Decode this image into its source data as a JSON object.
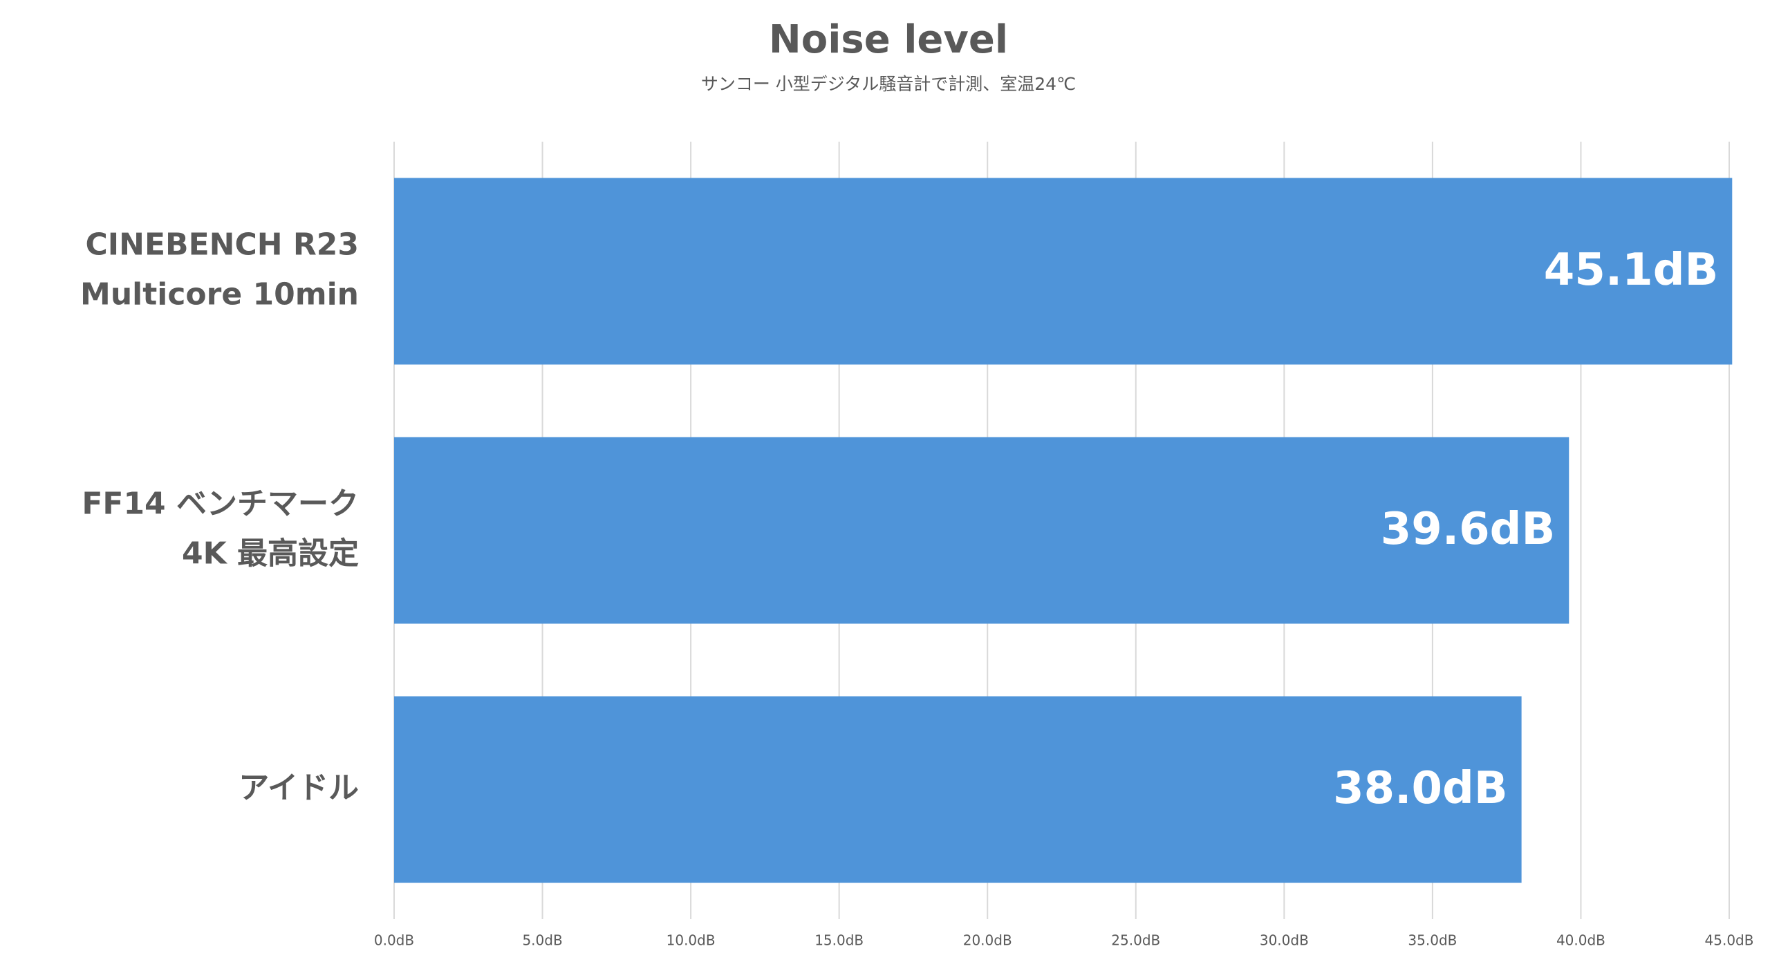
{
  "chart_data": {
    "type": "bar",
    "orientation": "horizontal",
    "title": "Noise level",
    "subtitle": "サンコー 小型デジタル騒音計で計測、室温24℃",
    "categories": [
      [
        "CINEBENCH R23",
        "Multicore 10min"
      ],
      [
        "FF14 ベンチマーク",
        "4K 最高設定"
      ],
      [
        "アイドル"
      ]
    ],
    "values": [
      45.1,
      39.6,
      38.0
    ],
    "value_labels": [
      "45.1dB",
      "39.6dB",
      "38.0dB"
    ],
    "color": "#4f94d9",
    "xlim": [
      0,
      45
    ],
    "xticks": [
      {
        "value": 0,
        "label": "0.0dB"
      },
      {
        "value": 5,
        "label": "5.0dB"
      },
      {
        "value": 10,
        "label": "10.0dB"
      },
      {
        "value": 15,
        "label": "15.0dB"
      },
      {
        "value": 20,
        "label": "20.0dB"
      },
      {
        "value": 25,
        "label": "25.0dB"
      },
      {
        "value": 30,
        "label": "30.0dB"
      },
      {
        "value": 35,
        "label": "35.0dB"
      },
      {
        "value": 40,
        "label": "40.0dB"
      },
      {
        "value": 45,
        "label": "45.0dB"
      }
    ],
    "grid": true
  }
}
